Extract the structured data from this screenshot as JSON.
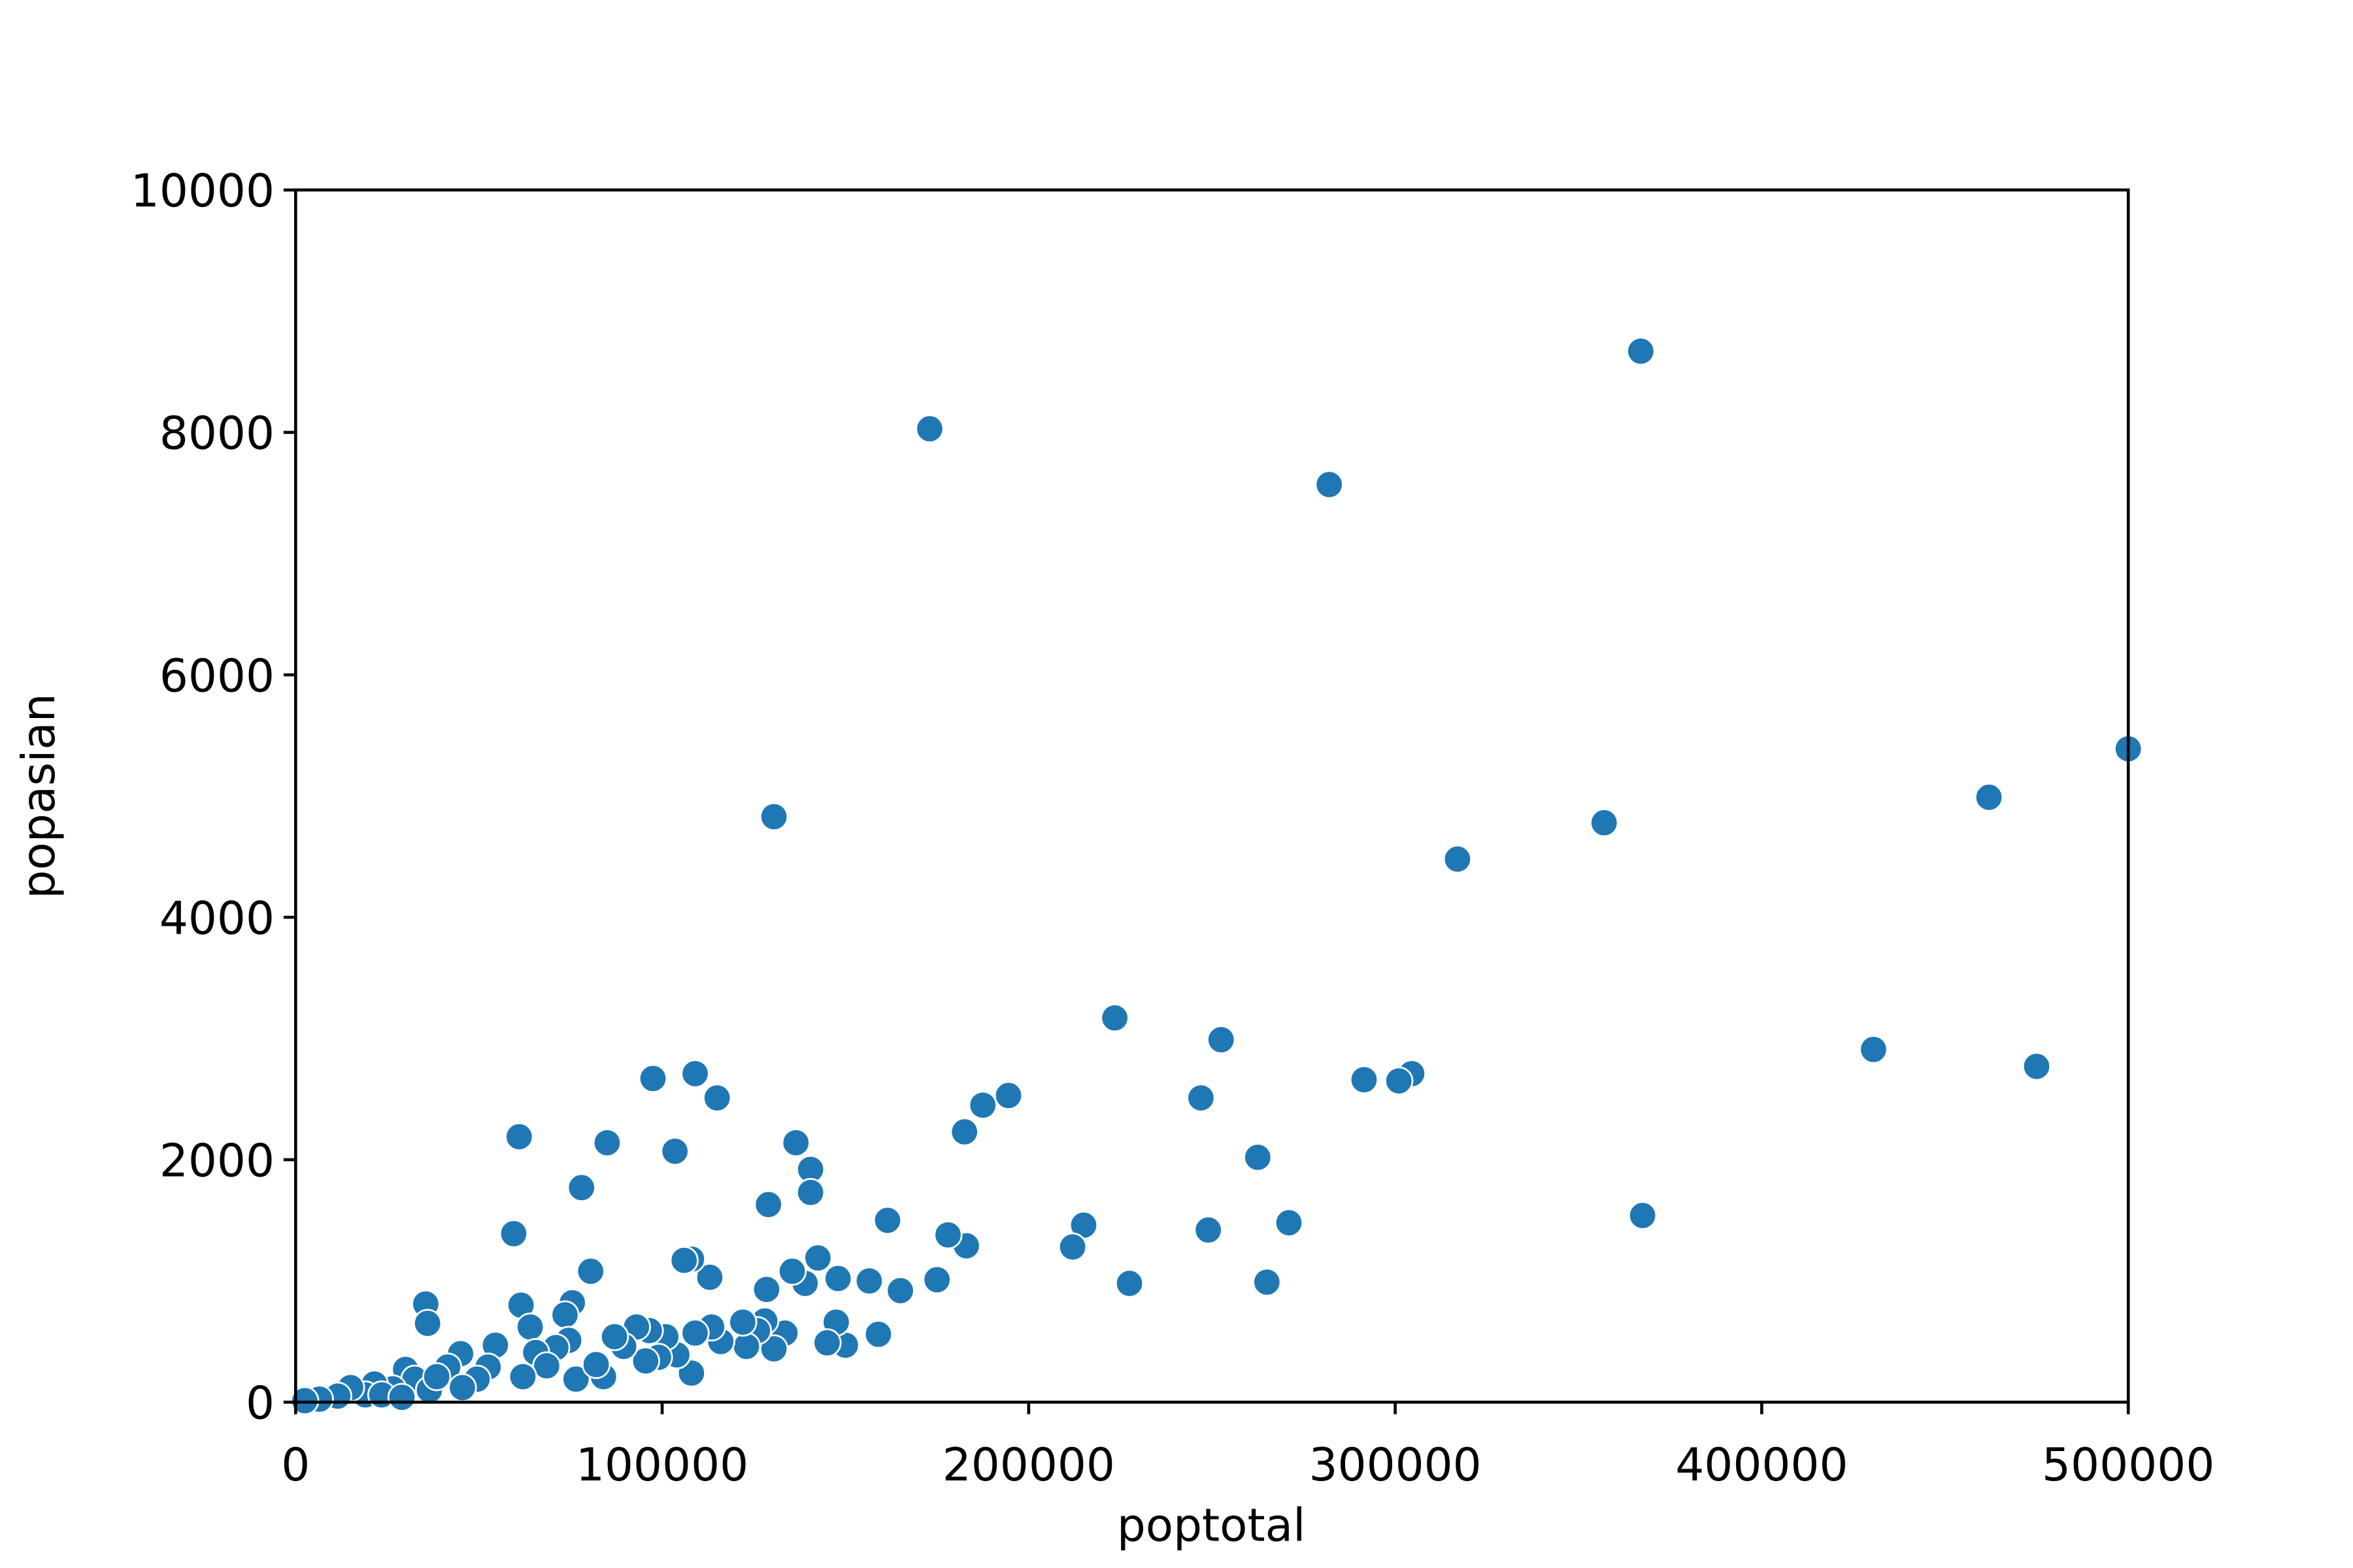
{
  "chart_data": {
    "type": "scatter",
    "x_label": "poptotal",
    "y_label": "popasian",
    "color": "#1f77b4",
    "x": [
      367000,
      173000,
      282000,
      130500,
      500000,
      462000,
      357000,
      317000,
      430500,
      475000,
      367500,
      223500,
      252500,
      291500,
      304500,
      301000,
      247000,
      262500,
      271000,
      249000,
      265000,
      227500,
      215000,
      212000,
      194500,
      187500,
      182500,
      183000,
      178000,
      175000,
      165000,
      161500,
      159000,
      156500,
      150000,
      147500,
      148000,
      145000,
      142500,
      140500,
      140500,
      136500,
      139000,
      135500,
      129000,
      128500,
      133500,
      130500,
      128000,
      126000,
      123000,
      122000,
      115000,
      109000,
      97500,
      103500,
      113000,
      108000,
      106000,
      116000,
      113500,
      109000,
      108000,
      104000,
      101000,
      99000,
      95500,
      96500,
      93000,
      89500,
      87000,
      84000,
      80500,
      85000,
      78000,
      61000,
      59500,
      61500,
      64000,
      75500,
      73500,
      74500,
      71000,
      65500,
      68500,
      76500,
      82000,
      62000,
      54500,
      52500,
      49500,
      45000,
      41500,
      35500,
      36000,
      30000,
      32500,
      36500,
      45500,
      38500,
      26500,
      21500,
      19000,
      15000,
      11500,
      6500,
      2500,
      23500,
      29000
    ],
    "values": [
      8670,
      8030,
      7570,
      4830,
      5390,
      4990,
      4780,
      4480,
      2910,
      2770,
      1540,
      3170,
      2990,
      2660,
      2710,
      2650,
      2510,
      2020,
      1480,
      1420,
      990,
      980,
      1460,
      1280,
      2530,
      2450,
      2230,
      1290,
      1380,
      1010,
      920,
      1500,
      560,
      1000,
      470,
      660,
      1020,
      490,
      1190,
      1920,
      1730,
      2140,
      980,
      1080,
      1630,
      930,
      570,
      440,
      670,
      590,
      460,
      660,
      2510,
      2710,
      2670,
      2070,
      1030,
      1180,
      1170,
      500,
      620,
      570,
      240,
      390,
      540,
      370,
      340,
      590,
      620,
      460,
      540,
      210,
      1080,
      2140,
      1770,
      2190,
      1390,
      800,
      620,
      820,
      720,
      510,
      450,
      410,
      300,
      190,
      310,
      210,
      470,
      290,
      190,
      400,
      290,
      810,
      650,
      270,
      190,
      100,
      120,
      210,
      110,
      150,
      60,
      120,
      50,
      25,
      12,
      60,
      40
    ],
    "xlim": [
      0,
      500000
    ],
    "xticks": [
      0,
      100000,
      200000,
      300000,
      400000,
      500000
    ],
    "ylim": [
      0,
      10000
    ],
    "yticks": [
      0,
      2000,
      4000,
      6000,
      8000,
      10000
    ]
  }
}
